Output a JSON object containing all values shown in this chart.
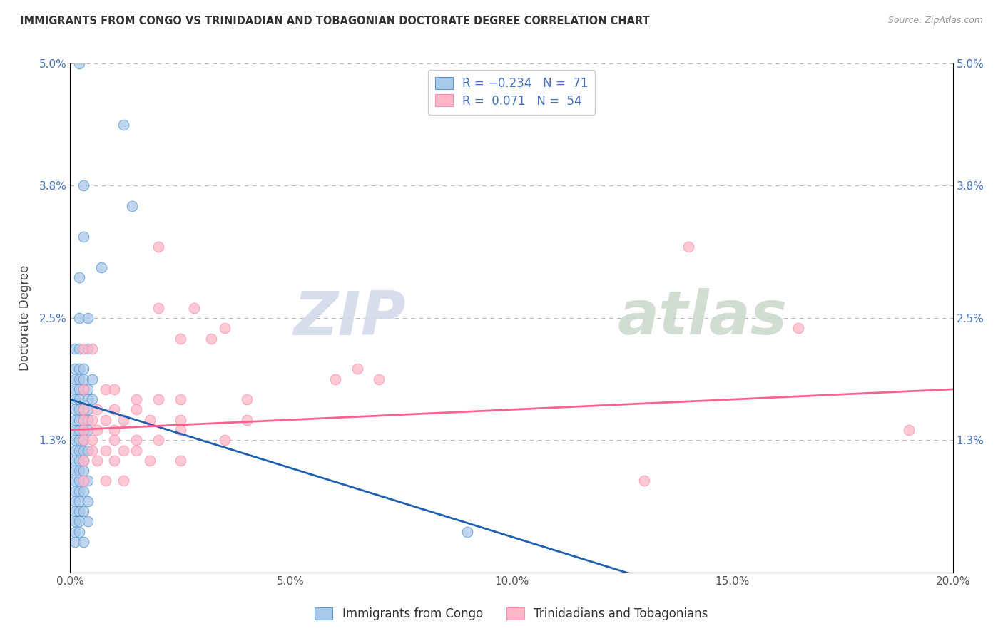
{
  "title": "IMMIGRANTS FROM CONGO VS TRINIDADIAN AND TOBAGONIAN DOCTORATE DEGREE CORRELATION CHART",
  "source": "Source: ZipAtlas.com",
  "ylabel": "Doctorate Degree",
  "xlim": [
    0.0,
    0.2
  ],
  "ylim": [
    0.0,
    0.05
  ],
  "xticks": [
    0.0,
    0.05,
    0.1,
    0.15,
    0.2
  ],
  "xticklabels": [
    "0.0%",
    "5.0%",
    "10.0%",
    "15.0%",
    "20.0%"
  ],
  "ytick_positions": [
    0.0,
    0.013,
    0.025,
    0.038,
    0.05
  ],
  "yticklabels": [
    "",
    "1.3%",
    "2.5%",
    "3.8%",
    "5.0%"
  ],
  "legend_labels": [
    "Immigrants from Congo",
    "Trinidadians and Tobagonians"
  ],
  "blue_color": "#A8C8E8",
  "pink_color": "#FFB6C8",
  "blue_edge_color": "#5B9BD5",
  "pink_edge_color": "#FF8FAF",
  "blue_line_color": "#2060B0",
  "pink_line_color": "#FF6090",
  "watermark_zip": "ZIP",
  "watermark_atlas": "atlas",
  "blue_scatter": [
    [
      0.002,
      0.05
    ],
    [
      0.012,
      0.044
    ],
    [
      0.003,
      0.038
    ],
    [
      0.014,
      0.036
    ],
    [
      0.003,
      0.033
    ],
    [
      0.007,
      0.03
    ],
    [
      0.002,
      0.029
    ],
    [
      0.002,
      0.025
    ],
    [
      0.004,
      0.025
    ],
    [
      0.001,
      0.022
    ],
    [
      0.002,
      0.022
    ],
    [
      0.004,
      0.022
    ],
    [
      0.001,
      0.02
    ],
    [
      0.002,
      0.02
    ],
    [
      0.003,
      0.02
    ],
    [
      0.001,
      0.019
    ],
    [
      0.002,
      0.019
    ],
    [
      0.003,
      0.019
    ],
    [
      0.005,
      0.019
    ],
    [
      0.001,
      0.018
    ],
    [
      0.002,
      0.018
    ],
    [
      0.003,
      0.018
    ],
    [
      0.004,
      0.018
    ],
    [
      0.001,
      0.017
    ],
    [
      0.002,
      0.017
    ],
    [
      0.004,
      0.017
    ],
    [
      0.005,
      0.017
    ],
    [
      0.001,
      0.016
    ],
    [
      0.002,
      0.016
    ],
    [
      0.003,
      0.016
    ],
    [
      0.004,
      0.016
    ],
    [
      0.001,
      0.015
    ],
    [
      0.002,
      0.015
    ],
    [
      0.003,
      0.015
    ],
    [
      0.004,
      0.015
    ],
    [
      0.001,
      0.014
    ],
    [
      0.002,
      0.014
    ],
    [
      0.003,
      0.014
    ],
    [
      0.004,
      0.014
    ],
    [
      0.001,
      0.013
    ],
    [
      0.002,
      0.013
    ],
    [
      0.003,
      0.013
    ],
    [
      0.001,
      0.012
    ],
    [
      0.002,
      0.012
    ],
    [
      0.003,
      0.012
    ],
    [
      0.004,
      0.012
    ],
    [
      0.001,
      0.011
    ],
    [
      0.002,
      0.011
    ],
    [
      0.003,
      0.011
    ],
    [
      0.001,
      0.01
    ],
    [
      0.002,
      0.01
    ],
    [
      0.003,
      0.01
    ],
    [
      0.001,
      0.009
    ],
    [
      0.002,
      0.009
    ],
    [
      0.004,
      0.009
    ],
    [
      0.001,
      0.008
    ],
    [
      0.002,
      0.008
    ],
    [
      0.003,
      0.008
    ],
    [
      0.001,
      0.007
    ],
    [
      0.002,
      0.007
    ],
    [
      0.004,
      0.007
    ],
    [
      0.001,
      0.006
    ],
    [
      0.002,
      0.006
    ],
    [
      0.003,
      0.006
    ],
    [
      0.001,
      0.005
    ],
    [
      0.002,
      0.005
    ],
    [
      0.004,
      0.005
    ],
    [
      0.001,
      0.004
    ],
    [
      0.002,
      0.004
    ],
    [
      0.001,
      0.003
    ],
    [
      0.003,
      0.003
    ],
    [
      0.09,
      0.004
    ]
  ],
  "pink_scatter": [
    [
      0.02,
      0.032
    ],
    [
      0.02,
      0.026
    ],
    [
      0.028,
      0.026
    ],
    [
      0.035,
      0.024
    ],
    [
      0.025,
      0.023
    ],
    [
      0.032,
      0.023
    ],
    [
      0.003,
      0.022
    ],
    [
      0.005,
      0.022
    ],
    [
      0.14,
      0.032
    ],
    [
      0.165,
      0.024
    ],
    [
      0.065,
      0.02
    ],
    [
      0.06,
      0.019
    ],
    [
      0.07,
      0.019
    ],
    [
      0.003,
      0.018
    ],
    [
      0.008,
      0.018
    ],
    [
      0.01,
      0.018
    ],
    [
      0.015,
      0.017
    ],
    [
      0.02,
      0.017
    ],
    [
      0.025,
      0.017
    ],
    [
      0.04,
      0.017
    ],
    [
      0.003,
      0.016
    ],
    [
      0.006,
      0.016
    ],
    [
      0.01,
      0.016
    ],
    [
      0.015,
      0.016
    ],
    [
      0.003,
      0.015
    ],
    [
      0.005,
      0.015
    ],
    [
      0.008,
      0.015
    ],
    [
      0.012,
      0.015
    ],
    [
      0.018,
      0.015
    ],
    [
      0.025,
      0.015
    ],
    [
      0.04,
      0.015
    ],
    [
      0.003,
      0.014
    ],
    [
      0.006,
      0.014
    ],
    [
      0.01,
      0.014
    ],
    [
      0.025,
      0.014
    ],
    [
      0.003,
      0.013
    ],
    [
      0.005,
      0.013
    ],
    [
      0.01,
      0.013
    ],
    [
      0.015,
      0.013
    ],
    [
      0.02,
      0.013
    ],
    [
      0.035,
      0.013
    ],
    [
      0.005,
      0.012
    ],
    [
      0.008,
      0.012
    ],
    [
      0.012,
      0.012
    ],
    [
      0.015,
      0.012
    ],
    [
      0.003,
      0.011
    ],
    [
      0.006,
      0.011
    ],
    [
      0.01,
      0.011
    ],
    [
      0.018,
      0.011
    ],
    [
      0.025,
      0.011
    ],
    [
      0.003,
      0.009
    ],
    [
      0.008,
      0.009
    ],
    [
      0.012,
      0.009
    ],
    [
      0.13,
      0.009
    ],
    [
      0.19,
      0.014
    ]
  ],
  "blue_line_x": [
    0.0,
    0.2
  ],
  "blue_line_y": [
    0.017,
    -0.01
  ],
  "pink_line_x": [
    0.0,
    0.2
  ],
  "pink_line_y": [
    0.014,
    0.018
  ]
}
